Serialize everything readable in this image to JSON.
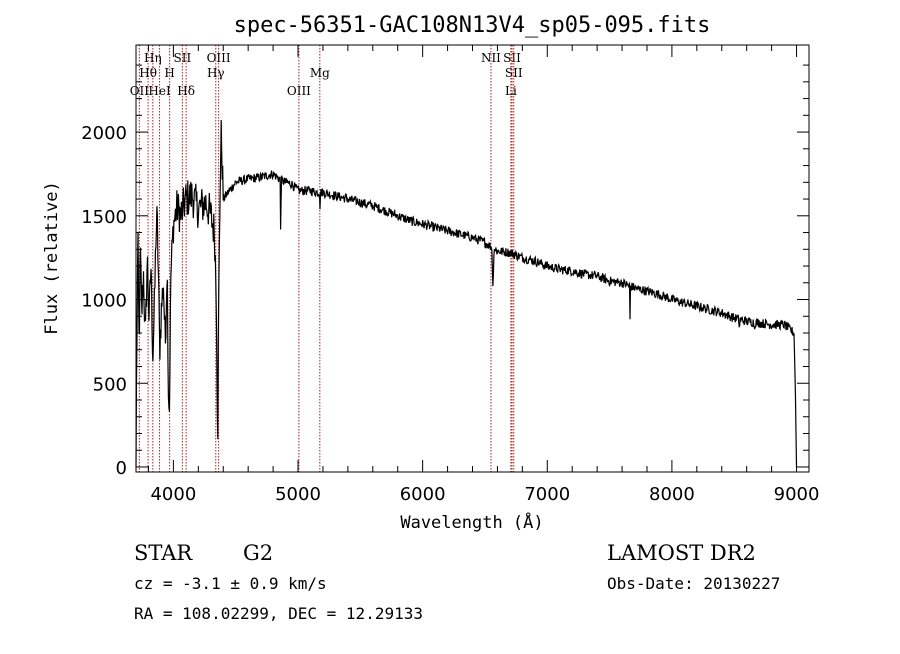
{
  "chart_data": {
    "type": "line",
    "title": "spec-56351-GAC108N13V4_sp05-095.fits",
    "xlabel": "Wavelength (Å)",
    "ylabel": "Flux (relative)",
    "xlim": [
      3700,
      9100
    ],
    "ylim": [
      -30,
      2520
    ],
    "x_ticks": [
      4000,
      5000,
      6000,
      7000,
      8000,
      9000
    ],
    "y_ticks": [
      0,
      500,
      1000,
      1500,
      2000
    ],
    "grid": false,
    "line_color": "#000000",
    "marker_color": "#b22222",
    "spectrum_anchors": [
      [
        3700,
        0
      ],
      [
        3705,
        600
      ],
      [
        3715,
        1350
      ],
      [
        3725,
        700
      ],
      [
        3735,
        1300
      ],
      [
        3745,
        900
      ],
      [
        3760,
        1150
      ],
      [
        3775,
        750
      ],
      [
        3790,
        1250
      ],
      [
        3805,
        880
      ],
      [
        3820,
        1200
      ],
      [
        3835,
        650
      ],
      [
        3850,
        1000
      ],
      [
        3860,
        1380
      ],
      [
        3870,
        1490
      ],
      [
        3880,
        1150
      ],
      [
        3890,
        700
      ],
      [
        3905,
        950
      ],
      [
        3920,
        1100
      ],
      [
        3935,
        720
      ],
      [
        3950,
        1230
      ],
      [
        3960,
        470
      ],
      [
        3968,
        350
      ],
      [
        3980,
        1150
      ],
      [
        4000,
        1450
      ],
      [
        4030,
        1550
      ],
      [
        4060,
        1500
      ],
      [
        4100,
        1600
      ],
      [
        4150,
        1620
      ],
      [
        4200,
        1540
      ],
      [
        4260,
        1580
      ],
      [
        4300,
        1500
      ],
      [
        4330,
        1400
      ],
      [
        4345,
        1000
      ],
      [
        4355,
        150
      ],
      [
        4362,
        900
      ],
      [
        4375,
        1700
      ],
      [
        4385,
        2000
      ],
      [
        4400,
        1600
      ],
      [
        4450,
        1650
      ],
      [
        4500,
        1700
      ],
      [
        4600,
        1720
      ],
      [
        4700,
        1730
      ],
      [
        4800,
        1750
      ],
      [
        4850,
        1720
      ],
      [
        4900,
        1700
      ],
      [
        4950,
        1690
      ],
      [
        5000,
        1650
      ],
      [
        5100,
        1650
      ],
      [
        5150,
        1640
      ],
      [
        5200,
        1640
      ],
      [
        5300,
        1620
      ],
      [
        5400,
        1600
      ],
      [
        5500,
        1580
      ],
      [
        5600,
        1560
      ],
      [
        5700,
        1530
      ],
      [
        5800,
        1500
      ],
      [
        5900,
        1470
      ],
      [
        6000,
        1450
      ],
      [
        6100,
        1430
      ],
      [
        6200,
        1410
      ],
      [
        6300,
        1390
      ],
      [
        6400,
        1370
      ],
      [
        6500,
        1340
      ],
      [
        6600,
        1290
      ],
      [
        6700,
        1280
      ],
      [
        6800,
        1250
      ],
      [
        6900,
        1230
      ],
      [
        7000,
        1200
      ],
      [
        7100,
        1180
      ],
      [
        7200,
        1170
      ],
      [
        7300,
        1150
      ],
      [
        7400,
        1140
      ],
      [
        7500,
        1110
      ],
      [
        7600,
        1100
      ],
      [
        7700,
        1070
      ],
      [
        7800,
        1050
      ],
      [
        7900,
        1030
      ],
      [
        8000,
        1000
      ],
      [
        8100,
        980
      ],
      [
        8200,
        960
      ],
      [
        8300,
        940
      ],
      [
        8400,
        920
      ],
      [
        8500,
        890
      ],
      [
        8600,
        870
      ],
      [
        8700,
        860
      ],
      [
        8800,
        850
      ],
      [
        8900,
        850
      ],
      [
        8980,
        800
      ],
      [
        8990,
        500
      ],
      [
        9000,
        0
      ]
    ],
    "absorption_features": [
      [
        4861,
        1320,
        4
      ],
      [
        5175,
        1500,
        3
      ],
      [
        6563,
        1000,
        4
      ],
      [
        6565,
        1080,
        8
      ],
      [
        7665,
        780,
        3
      ],
      [
        8542,
        760,
        3
      ],
      [
        8662,
        780,
        3
      ]
    ],
    "line_markers": [
      {
        "label": "OII",
        "wavelength": 3727,
        "row": 3
      },
      {
        "label": "Hη",
        "wavelength": 3835,
        "row": 1
      },
      {
        "label": "Hθ",
        "wavelength": 3797,
        "row": 2
      },
      {
        "label": "HeI",
        "wavelength": 3889,
        "row": 3
      },
      {
        "label": "SII",
        "wavelength": 4072,
        "row": 1
      },
      {
        "label": "H",
        "wavelength": 3970,
        "row": 2
      },
      {
        "label": "Hδ",
        "wavelength": 4102,
        "row": 3
      },
      {
        "label": "OIII",
        "wavelength": 4363,
        "row": 1
      },
      {
        "label": "Hγ",
        "wavelength": 4340,
        "row": 2
      },
      {
        "label": "OIII",
        "wavelength": 5007,
        "row": 3
      },
      {
        "label": "Mg",
        "wavelength": 5175,
        "row": 2
      },
      {
        "label": "NII",
        "wavelength": 6548,
        "row": 1
      },
      {
        "label": "SII",
        "wavelength": 6717,
        "row": 1
      },
      {
        "label": "SII",
        "wavelength": 6731,
        "row": 2
      },
      {
        "label": "Li",
        "wavelength": 6708,
        "row": 3
      }
    ]
  },
  "info": {
    "class": "STAR",
    "subclass": "G2",
    "redshift": "cz = -3.1 ± 0.9 km/s",
    "coords": "RA = 108.02299, DEC =  12.29133",
    "survey": "LAMOST DR2",
    "obs_date": "Obs-Date: 20130227"
  }
}
